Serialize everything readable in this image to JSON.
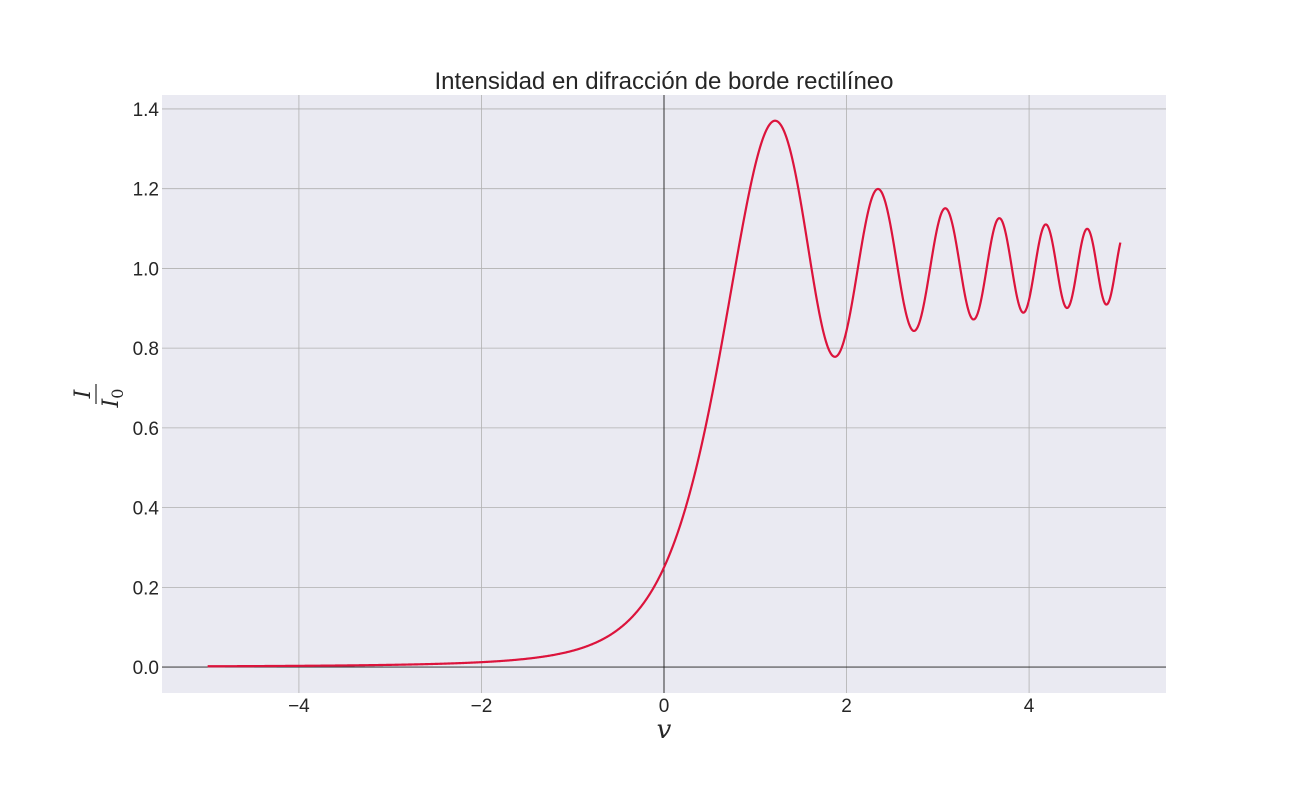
{
  "chart_data": {
    "type": "line",
    "title": "Intensidad en difracción de borde rectilíneo",
    "xlabel": "v",
    "ylabel": {
      "numerator": "I",
      "denominator": "I",
      "denominator_subscript": "0"
    },
    "xlim": [
      -5.5,
      5.5
    ],
    "ylim": [
      -0.065,
      1.435
    ],
    "xticks": [
      -4,
      -2,
      0,
      2,
      4
    ],
    "xtick_labels": [
      "−4",
      "−2",
      "0",
      "2",
      "4"
    ],
    "yticks": [
      0.0,
      0.2,
      0.4,
      0.6,
      0.8,
      1.0,
      1.2,
      1.4
    ],
    "ytick_labels": [
      "0.0",
      "0.2",
      "0.4",
      "0.6",
      "0.8",
      "1.0",
      "1.2",
      "1.4"
    ],
    "grid": true,
    "reference_lines": {
      "x": 0,
      "y": 0
    },
    "colors": {
      "background": "#eaeaf2",
      "grid": "#b0b0b0",
      "line": "#dc143c",
      "text": "#262626"
    },
    "series": [
      {
        "x_range": [
          -5,
          5
        ],
        "peaks": [
          {
            "x": 1.22,
            "y": 1.37
          },
          {
            "x": 1.87,
            "y": 0.78
          },
          {
            "x": 2.34,
            "y": 1.2
          },
          {
            "x": 2.74,
            "y": 0.84
          },
          {
            "x": 3.08,
            "y": 1.15
          },
          {
            "x": 3.39,
            "y": 0.87
          },
          {
            "x": 3.67,
            "y": 1.13
          },
          {
            "x": 3.94,
            "y": 0.89
          },
          {
            "x": 4.19,
            "y": 1.11
          },
          {
            "x": 4.42,
            "y": 0.9
          },
          {
            "x": 4.65,
            "y": 1.1
          },
          {
            "x": 4.86,
            "y": 0.91
          }
        ],
        "points": [
          [
            -5.0,
            0.003
          ],
          [
            -4.0,
            0.005
          ],
          [
            -3.0,
            0.009
          ],
          [
            -2.0,
            0.013
          ],
          [
            -1.5,
            0.024
          ],
          [
            -1.0,
            0.051
          ],
          [
            -0.5,
            0.118
          ],
          [
            0.0,
            0.25
          ],
          [
            0.5,
            0.62
          ],
          [
            1.0,
            1.25
          ],
          [
            1.22,
            1.37
          ],
          [
            5.0,
            1.065
          ]
        ]
      }
    ]
  }
}
